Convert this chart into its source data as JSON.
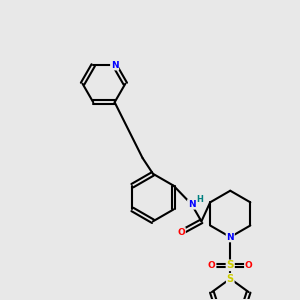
{
  "background_color": "#e8e8e8",
  "bond_color": "#000000",
  "atom_colors": {
    "N": "#0000ff",
    "O": "#ff0000",
    "S_sulfonyl": "#cccc00",
    "S_thiophene": "#cccc00",
    "H": "#008080",
    "C": "#000000"
  },
  "figsize": [
    3.0,
    3.0
  ],
  "dpi": 100
}
